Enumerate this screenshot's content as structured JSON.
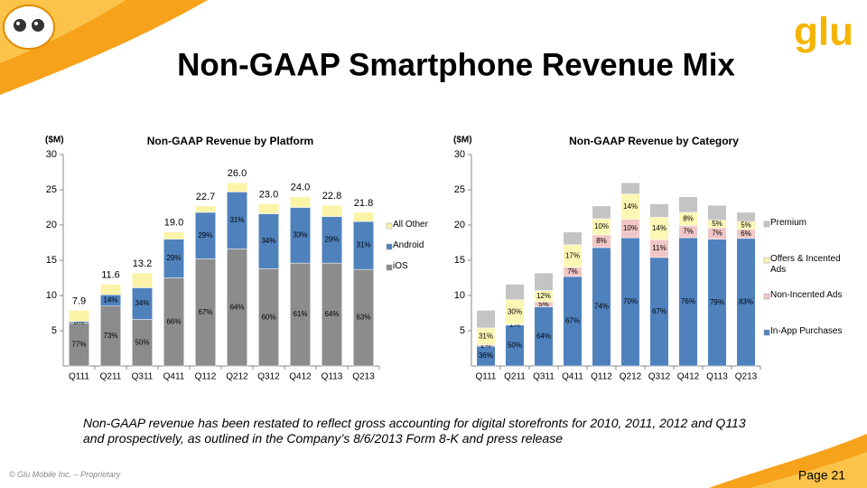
{
  "header": {
    "title": "Non-GAAP Smartphone Revenue Mix",
    "logo": "glu"
  },
  "chart_data": [
    {
      "type": "bar",
      "stacked": true,
      "title": "Non-GAAP Revenue by Platform",
      "y_label": "($M)",
      "categories": [
        "Q111",
        "Q211",
        "Q311",
        "Q411",
        "Q112",
        "Q212",
        "Q312",
        "Q412",
        "Q113",
        "Q213"
      ],
      "ylim": [
        0,
        30
      ],
      "yticks": [
        5,
        10,
        15,
        20,
        25,
        30
      ],
      "grid": false,
      "legend": "right",
      "totals": [
        7.9,
        11.6,
        13.2,
        19.0,
        22.7,
        26.0,
        23.0,
        24.0,
        22.8,
        21.8
      ],
      "total_labels": [
        "7.9",
        "11.6",
        "13.2",
        "19.0",
        "22.7",
        "26.0",
        "23.0",
        "24.0",
        "22.8",
        "21.8"
      ],
      "series": [
        {
          "name": "iOS",
          "color": "#8c8c8c",
          "values": [
            6.1,
            8.5,
            6.6,
            12.5,
            15.2,
            16.6,
            13.8,
            14.6,
            14.6,
            13.7
          ],
          "value_labels": [
            "77%",
            "73%",
            "50%",
            "66%",
            "67%",
            "64%",
            "60%",
            "61%",
            "64%",
            "63%"
          ]
        },
        {
          "name": "Android",
          "color": "#4f81bd",
          "values": [
            0.2,
            1.6,
            4.5,
            5.5,
            6.6,
            8.1,
            7.8,
            7.9,
            6.6,
            6.8
          ],
          "value_labels": [
            "3%",
            "14%",
            "34%",
            "29%",
            "29%",
            "31%",
            "34%",
            "33%",
            "29%",
            "31%"
          ]
        },
        {
          "name": "All Other",
          "color": "#fbf4a8",
          "values": [
            1.6,
            1.5,
            2.1,
            1.0,
            0.9,
            1.3,
            1.4,
            1.5,
            1.6,
            1.3
          ]
        }
      ]
    },
    {
      "type": "bar",
      "stacked": true,
      "title": "Non-GAAP Revenue by Category",
      "y_label": "($M)",
      "categories": [
        "Q111",
        "Q211",
        "Q311",
        "Q411",
        "Q112",
        "Q212",
        "Q312",
        "Q412",
        "Q113",
        "Q213"
      ],
      "ylim": [
        0,
        30
      ],
      "yticks": [
        5,
        10,
        15,
        20,
        25,
        30
      ],
      "grid": false,
      "legend": "right",
      "series": [
        {
          "name": "In-App Purchases",
          "color": "#4f81bd",
          "values": [
            2.8,
            5.8,
            8.4,
            12.7,
            16.8,
            18.2,
            15.4,
            18.2,
            18.0,
            18.1
          ],
          "value_labels": [
            "36%",
            "50%",
            "64%",
            "67%",
            "74%",
            "70%",
            "67%",
            "76%",
            "79%",
            "83%"
          ]
        },
        {
          "name": "Non-Incented Ads",
          "color": "#f2c6c6",
          "values": [
            0.2,
            0.1,
            0.7,
            1.3,
            1.8,
            2.6,
            2.5,
            1.7,
            1.6,
            1.3
          ],
          "value_labels": [
            "2%",
            "1%",
            "5%",
            "7%",
            "8%",
            "10%",
            "11%",
            "7%",
            "7%",
            "6%"
          ]
        },
        {
          "name": "Offers & Incented Ads",
          "color": "#fdf7b6",
          "values": [
            2.4,
            3.5,
            1.6,
            3.2,
            2.3,
            3.6,
            3.2,
            1.9,
            1.1,
            1.1
          ],
          "value_labels": [
            "31%",
            "30%",
            "12%",
            "17%",
            "10%",
            "14%",
            "14%",
            "8%",
            "5%",
            "5%"
          ]
        },
        {
          "name": "Premium",
          "color": "#c4c4c4",
          "values": [
            2.5,
            2.2,
            2.5,
            1.8,
            1.8,
            1.6,
            1.9,
            2.2,
            2.1,
            1.3
          ]
        }
      ]
    }
  ],
  "note": "Non-GAAP revenue has been restated to reflect gross accounting for digital storefronts for 2010, 2011, 2012  and Q113 and prospectively, as outlined in the Company’s 8/6/2013 Form 8-K and press release",
  "footer": {
    "copyright": "© Glu Mobile Inc. – Proprietary",
    "page": "Page 21"
  }
}
